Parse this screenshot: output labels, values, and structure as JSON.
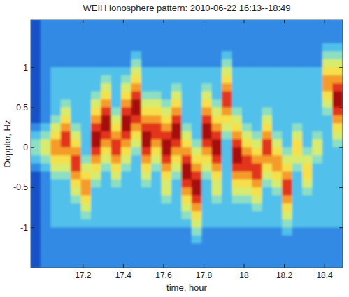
{
  "chart_data": {
    "type": "heatmap",
    "title": "WEIH ionosphere pattern: 2010-06-22 16:13--18:49",
    "x_label": "time, hour",
    "y_label": "Doppler, Hz",
    "xlim": [
      16.94,
      18.49
    ],
    "ylim": [
      -1.5,
      1.6
    ],
    "xticks": [
      17.2,
      17.4,
      17.6,
      17.8,
      18,
      18.2,
      18.4
    ],
    "yticks": [
      -1,
      -0.5,
      0,
      0.5,
      1
    ],
    "grid": false,
    "clim": [
      0,
      9
    ],
    "x": [
      16.965,
      17.015,
      17.065,
      17.115,
      17.165,
      17.215,
      17.265,
      17.315,
      17.365,
      17.415,
      17.465,
      17.515,
      17.565,
      17.615,
      17.665,
      17.715,
      17.765,
      17.815,
      17.865,
      17.915,
      17.965,
      18.015,
      18.065,
      18.115,
      18.165,
      18.215,
      18.265,
      18.315,
      18.365,
      18.415,
      18.465
    ],
    "y": [
      1.55,
      1.45,
      1.35,
      1.25,
      1.15,
      1.05,
      0.95,
      0.85,
      0.75,
      0.65,
      0.55,
      0.45,
      0.35,
      0.25,
      0.15,
      0.05,
      -0.05,
      -0.15,
      -0.25,
      -0.35,
      -0.45,
      -0.55,
      -0.65,
      -0.75,
      -0.85,
      -0.95,
      -1.05,
      -1.15,
      -1.25,
      -1.35,
      -1.45
    ],
    "cells": [
      [
        1,
        2,
        2,
        2,
        2,
        2,
        2,
        2,
        2,
        2,
        2,
        2,
        2,
        2,
        2,
        2,
        2,
        2,
        2,
        2,
        2,
        2,
        2,
        2,
        2,
        2,
        2,
        2,
        2,
        2,
        2
      ],
      [
        1,
        2,
        2,
        2,
        2,
        2,
        2,
        2,
        2,
        2,
        2,
        2,
        2,
        2,
        2,
        2,
        2,
        2,
        2,
        2,
        2,
        2,
        2,
        2,
        2,
        2,
        2,
        2,
        2,
        2,
        2
      ],
      [
        1,
        2,
        2,
        2,
        2,
        2,
        2,
        2,
        2,
        2,
        2,
        2,
        2,
        2,
        2,
        2,
        2,
        2,
        2,
        2,
        2,
        2,
        2,
        2,
        2,
        2,
        2,
        2,
        2,
        2,
        2
      ],
      [
        1,
        2,
        2,
        2,
        2,
        2,
        2,
        2,
        2,
        2,
        2,
        2,
        2,
        2,
        2,
        2,
        2,
        2,
        2,
        2,
        2,
        2,
        2,
        2,
        2,
        2,
        2,
        2,
        2,
        3,
        3
      ],
      [
        1,
        2,
        2,
        2,
        2,
        2,
        2,
        2,
        2,
        2,
        3,
        2,
        2,
        2,
        2,
        2,
        2,
        2,
        2,
        3,
        2,
        2,
        2,
        2,
        2,
        2,
        2,
        2,
        2,
        4,
        4
      ],
      [
        1,
        2,
        2,
        2,
        2,
        2,
        2,
        2,
        2,
        2,
        4,
        2,
        2,
        2,
        2,
        2,
        2,
        2,
        2,
        4,
        2,
        2,
        2,
        2,
        2,
        2,
        2,
        2,
        2,
        5,
        5
      ],
      [
        1,
        2,
        3,
        3,
        3,
        3,
        3,
        3,
        3,
        3,
        5,
        3,
        3,
        3,
        3,
        3,
        3,
        3,
        3,
        5,
        3,
        3,
        3,
        3,
        3,
        3,
        3,
        3,
        3,
        6,
        6
      ],
      [
        1,
        2,
        3,
        3,
        3,
        3,
        3,
        4,
        3,
        4,
        6,
        3,
        3,
        3,
        3,
        3,
        3,
        3,
        3,
        6,
        3,
        3,
        3,
        3,
        3,
        3,
        3,
        3,
        3,
        7,
        7
      ],
      [
        1,
        2,
        3,
        3,
        3,
        3,
        3,
        5,
        3,
        5,
        7,
        3,
        3,
        3,
        4,
        3,
        3,
        4,
        3,
        7,
        3,
        3,
        3,
        3,
        3,
        3,
        3,
        3,
        3,
        7,
        8
      ],
      [
        1,
        2,
        3,
        3,
        3,
        3,
        4,
        6,
        3,
        6,
        8,
        4,
        4,
        3,
        5,
        3,
        3,
        5,
        3,
        8,
        3,
        3,
        3,
        3,
        3,
        3,
        3,
        3,
        3,
        6,
        9
      ],
      [
        1,
        2,
        3,
        4,
        3,
        3,
        5,
        7,
        3,
        7,
        9,
        5,
        5,
        4,
        6,
        3,
        3,
        6,
        4,
        8,
        3,
        3,
        3,
        3,
        3,
        3,
        3,
        3,
        3,
        5,
        9
      ],
      [
        1,
        2,
        3,
        5,
        3,
        3,
        6,
        8,
        4,
        8,
        9,
        6,
        6,
        5,
        7,
        3,
        3,
        7,
        5,
        7,
        4,
        3,
        3,
        4,
        3,
        3,
        3,
        3,
        3,
        4,
        8
      ],
      [
        1,
        2,
        4,
        6,
        3,
        3,
        7,
        9,
        5,
        9,
        8,
        7,
        7,
        6,
        8,
        3,
        3,
        8,
        6,
        6,
        5,
        3,
        3,
        5,
        3,
        3,
        3,
        3,
        3,
        3,
        7
      ],
      [
        2,
        3,
        5,
        7,
        4,
        3,
        8,
        9,
        6,
        9,
        7,
        8,
        8,
        7,
        9,
        4,
        3,
        9,
        7,
        5,
        6,
        4,
        3,
        6,
        3,
        3,
        4,
        3,
        3,
        3,
        6
      ],
      [
        3,
        4,
        6,
        8,
        5,
        3,
        9,
        8,
        7,
        8,
        6,
        9,
        8,
        8,
        9,
        5,
        3,
        9,
        8,
        4,
        7,
        5,
        4,
        7,
        4,
        3,
        5,
        3,
        4,
        3,
        5
      ],
      [
        4,
        5,
        7,
        8,
        6,
        3,
        9,
        7,
        8,
        7,
        5,
        9,
        7,
        9,
        8,
        6,
        4,
        8,
        9,
        3,
        8,
        6,
        5,
        8,
        5,
        3,
        6,
        3,
        5,
        3,
        4
      ],
      [
        4,
        5,
        7,
        7,
        7,
        3,
        8,
        6,
        8,
        6,
        4,
        8,
        6,
        9,
        7,
        7,
        5,
        7,
        9,
        3,
        9,
        7,
        6,
        8,
        6,
        4,
        6,
        4,
        5,
        3,
        3
      ],
      [
        3,
        4,
        6,
        6,
        8,
        4,
        7,
        5,
        7,
        5,
        3,
        7,
        5,
        8,
        6,
        8,
        6,
        6,
        8,
        3,
        9,
        8,
        7,
        7,
        7,
        5,
        5,
        5,
        4,
        3,
        3
      ],
      [
        2,
        3,
        5,
        5,
        8,
        5,
        6,
        4,
        6,
        4,
        3,
        6,
        4,
        7,
        5,
        9,
        7,
        5,
        7,
        3,
        8,
        8,
        8,
        6,
        7,
        6,
        4,
        6,
        3,
        3,
        3
      ],
      [
        1,
        2,
        4,
        4,
        7,
        6,
        5,
        3,
        5,
        3,
        3,
        5,
        3,
        6,
        4,
        9,
        8,
        4,
        6,
        3,
        7,
        7,
        8,
        5,
        6,
        7,
        3,
        6,
        3,
        3,
        3
      ],
      [
        1,
        2,
        3,
        3,
        6,
        7,
        4,
        3,
        4,
        3,
        3,
        4,
        3,
        5,
        3,
        8,
        9,
        3,
        5,
        3,
        6,
        6,
        7,
        4,
        5,
        8,
        3,
        5,
        3,
        3,
        3
      ],
      [
        1,
        2,
        3,
        3,
        5,
        7,
        3,
        3,
        3,
        3,
        3,
        3,
        3,
        5,
        3,
        7,
        9,
        3,
        5,
        3,
        5,
        5,
        6,
        3,
        4,
        8,
        3,
        4,
        3,
        3,
        3
      ],
      [
        1,
        2,
        3,
        3,
        4,
        6,
        3,
        3,
        3,
        3,
        3,
        3,
        3,
        4,
        3,
        6,
        8,
        3,
        4,
        3,
        4,
        4,
        5,
        3,
        3,
        7,
        3,
        3,
        3,
        3,
        3
      ],
      [
        1,
        2,
        3,
        3,
        3,
        5,
        3,
        3,
        3,
        3,
        3,
        3,
        3,
        3,
        3,
        5,
        7,
        3,
        3,
        3,
        3,
        3,
        4,
        3,
        3,
        6,
        3,
        3,
        3,
        3,
        3
      ],
      [
        1,
        2,
        3,
        3,
        3,
        4,
        3,
        3,
        3,
        3,
        3,
        3,
        3,
        3,
        3,
        4,
        6,
        3,
        3,
        3,
        3,
        3,
        3,
        3,
        3,
        5,
        3,
        3,
        3,
        3,
        3
      ],
      [
        1,
        2,
        3,
        3,
        3,
        3,
        3,
        3,
        3,
        3,
        3,
        3,
        3,
        3,
        3,
        3,
        5,
        3,
        3,
        3,
        3,
        3,
        3,
        3,
        3,
        4,
        3,
        3,
        3,
        3,
        3
      ],
      [
        1,
        2,
        2,
        2,
        2,
        2,
        2,
        2,
        2,
        2,
        2,
        2,
        2,
        2,
        2,
        2,
        4,
        2,
        2,
        2,
        2,
        2,
        2,
        2,
        2,
        3,
        2,
        2,
        2,
        2,
        2
      ],
      [
        1,
        2,
        2,
        2,
        2,
        2,
        2,
        2,
        2,
        2,
        2,
        2,
        2,
        2,
        2,
        2,
        3,
        2,
        2,
        2,
        2,
        2,
        2,
        2,
        2,
        2,
        2,
        2,
        2,
        2,
        2
      ],
      [
        1,
        2,
        2,
        2,
        2,
        2,
        2,
        2,
        2,
        2,
        2,
        2,
        2,
        2,
        2,
        2,
        2,
        2,
        2,
        2,
        2,
        2,
        2,
        2,
        2,
        2,
        2,
        2,
        2,
        2,
        2
      ],
      [
        1,
        2,
        2,
        2,
        2,
        2,
        2,
        2,
        2,
        2,
        2,
        2,
        2,
        2,
        2,
        2,
        2,
        2,
        2,
        2,
        2,
        2,
        2,
        2,
        2,
        2,
        2,
        2,
        2,
        2,
        2
      ],
      [
        1,
        2,
        2,
        2,
        2,
        2,
        2,
        2,
        2,
        2,
        2,
        2,
        2,
        2,
        2,
        2,
        2,
        2,
        2,
        2,
        2,
        2,
        2,
        2,
        2,
        2,
        2,
        2,
        2,
        2,
        2
      ]
    ]
  }
}
